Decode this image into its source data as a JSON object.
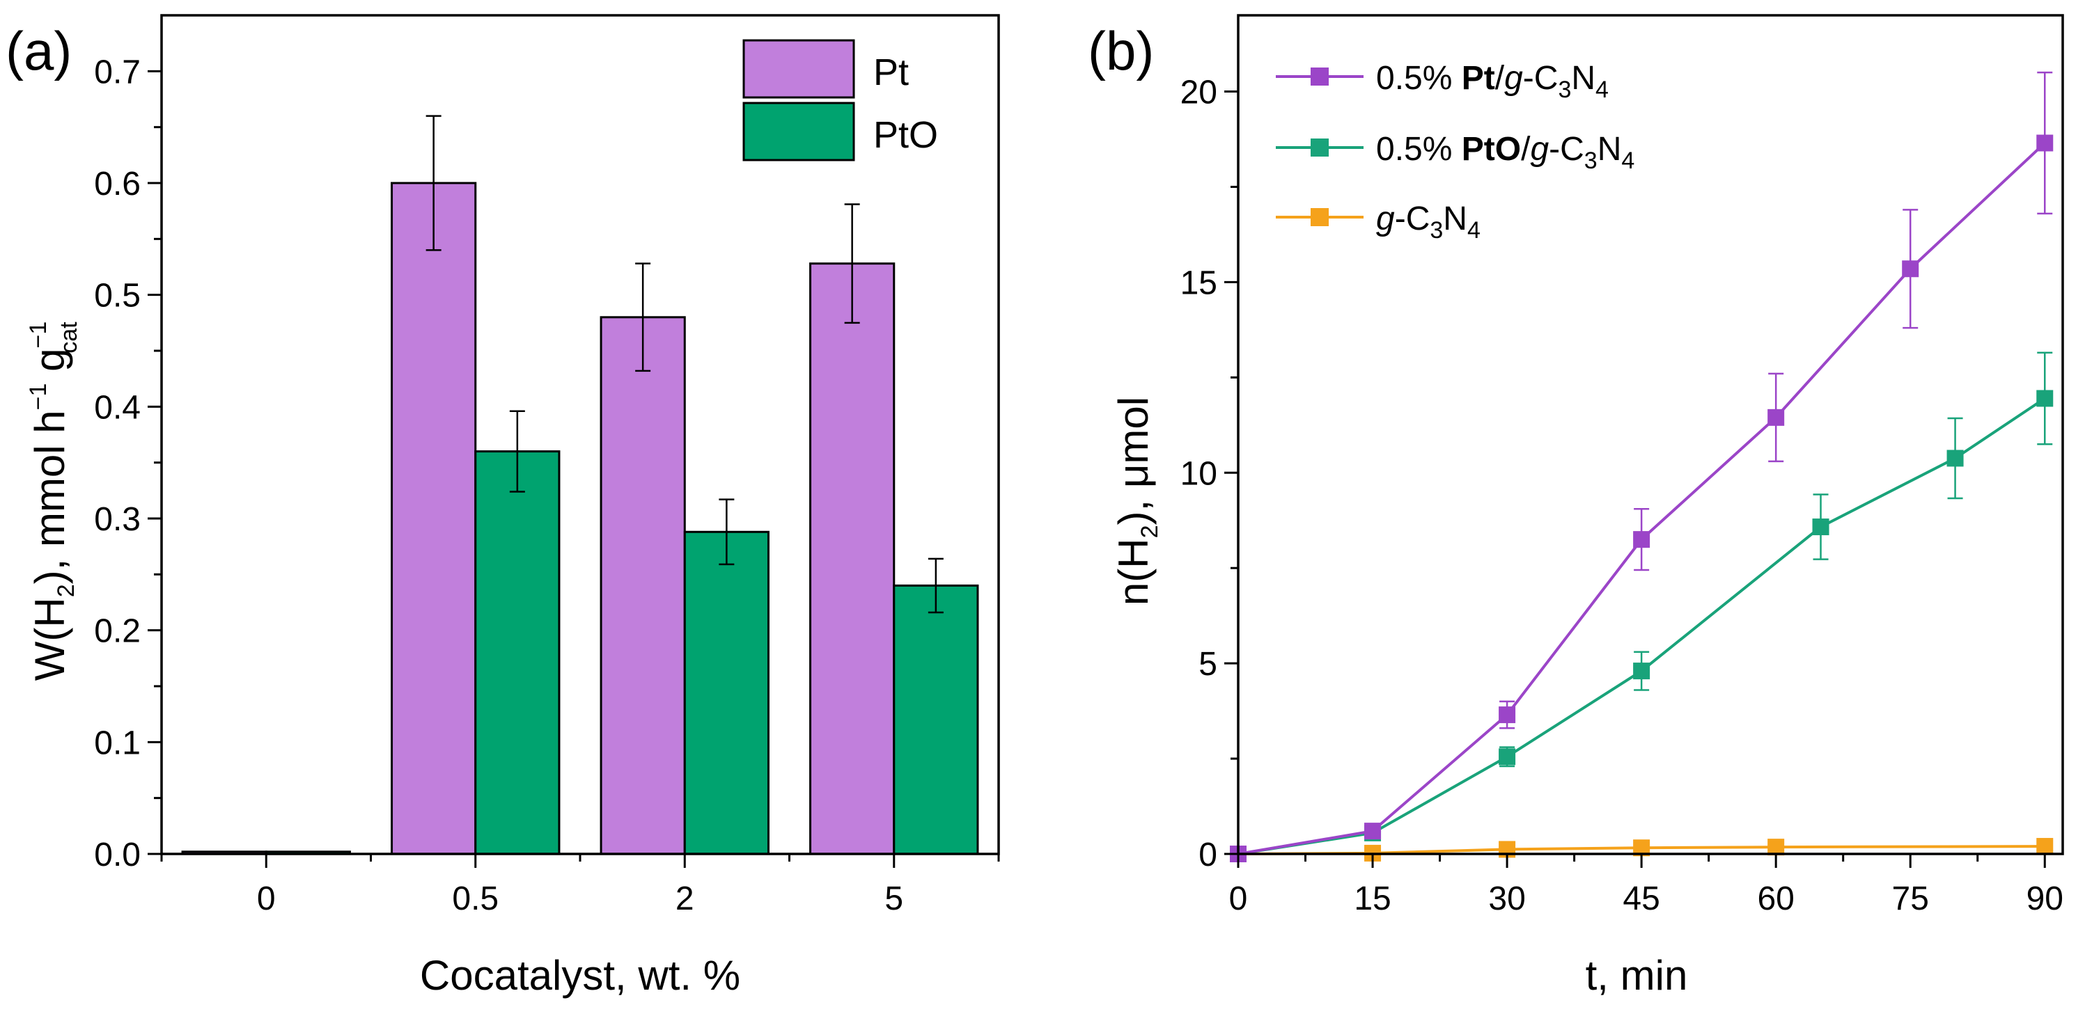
{
  "chart_data": [
    {
      "panel_label": "(a)",
      "type": "bar",
      "xlabel": "Cocatalyst, wt. %",
      "ylabel_parts": {
        "main": "W(H",
        "sub1": "2",
        "mid": "), mmol h",
        "sup1": "−1",
        "g": " g",
        "sup2": "−1",
        "sub2": "cat"
      },
      "ylim": [
        0,
        0.75
      ],
      "yticks": [
        "0.0",
        "0.1",
        "0.2",
        "0.3",
        "0.4",
        "0.5",
        "0.6",
        "0.7"
      ],
      "categories": [
        "0",
        "0.5",
        "2",
        "5"
      ],
      "series": [
        {
          "name": "Pt",
          "color": "#c17fdc",
          "values": [
            0.002,
            0.6,
            0.48,
            0.528
          ],
          "errors": [
            0,
            0.06,
            0.048,
            0.053
          ]
        },
        {
          "name": "PtO",
          "color": "#00a36f",
          "values": [
            0.002,
            0.36,
            0.288,
            0.24
          ],
          "errors": [
            0,
            0.036,
            0.029,
            0.024
          ]
        }
      ],
      "legend_position": "top-right"
    },
    {
      "panel_label": "(b)",
      "type": "line",
      "xlabel": "t, min",
      "ylabel_parts": {
        "main": "n(H",
        "sub": "2",
        "rest": "), μmol"
      },
      "xlim": [
        0,
        92
      ],
      "ylim": [
        0,
        22
      ],
      "xticks": [
        "0",
        "15",
        "30",
        "45",
        "60",
        "75",
        "90"
      ],
      "yticks": [
        "0",
        "5",
        "10",
        "15",
        "20"
      ],
      "series": [
        {
          "name": "0.5% Pt/g-C3N4",
          "label_parts": {
            "pre": "0.5% ",
            "bold": "Pt",
            "slash": "/",
            "ital": "g",
            "dash": "-C",
            "s1": "3",
            "n": "N",
            "s2": "4"
          },
          "color": "#9b45c8",
          "x": [
            0,
            15,
            30,
            45,
            60,
            75,
            90
          ],
          "y": [
            0,
            0.6,
            3.65,
            8.25,
            11.45,
            15.35,
            18.65
          ],
          "errors": [
            0,
            0.05,
            0.35,
            0.8,
            1.15,
            1.55,
            1.85
          ]
        },
        {
          "name": "0.5% PtO/g-C3N4",
          "label_parts": {
            "pre": "0.5% ",
            "bold": "PtO",
            "slash": "/",
            "ital": "g",
            "dash": "-C",
            "s1": "3",
            "n": "N",
            "s2": "4"
          },
          "color": "#19a37a",
          "x": [
            0,
            15,
            30,
            45,
            65,
            80,
            90
          ],
          "y": [
            0,
            0.55,
            2.55,
            4.8,
            8.58,
            10.38,
            11.95
          ],
          "errors": [
            0,
            0.05,
            0.25,
            0.5,
            0.85,
            1.05,
            1.2
          ]
        },
        {
          "name": "g-C3N4",
          "label_parts": {
            "pre": "",
            "bold": "",
            "slash": "",
            "ital": "g",
            "dash": "-C",
            "s1": "3",
            "n": "N",
            "s2": "4"
          },
          "color": "#f5a21b",
          "x": [
            0,
            15,
            30,
            45,
            60,
            90
          ],
          "y": [
            0,
            0.02,
            0.12,
            0.16,
            0.18,
            0.2
          ],
          "errors": [
            0,
            0,
            0,
            0,
            0,
            0
          ]
        }
      ],
      "legend_position": "top-left"
    }
  ]
}
